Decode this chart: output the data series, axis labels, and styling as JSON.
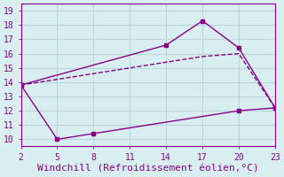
{
  "line1_x": [
    2,
    14,
    17,
    20,
    23
  ],
  "line1_y": [
    13.8,
    16.6,
    18.3,
    16.4,
    12.2
  ],
  "line2_x": [
    2,
    5,
    8,
    11,
    14,
    17,
    20,
    23
  ],
  "line2_y": [
    13.8,
    14.2,
    14.6,
    15.0,
    15.4,
    15.8,
    16.0,
    12.2
  ],
  "line3_x": [
    2,
    5,
    8,
    20,
    23
  ],
  "line3_y": [
    13.8,
    10.0,
    10.4,
    12.0,
    12.2
  ],
  "line_color": "#8b008b",
  "bg_color": "#d8eef0",
  "grid_color": "#b8d8dc",
  "xlabel": "Windchill (Refroidissement éolien,°C)",
  "xlim": [
    2,
    23
  ],
  "ylim": [
    9.5,
    19.5
  ],
  "xticks": [
    2,
    5,
    8,
    11,
    14,
    17,
    20,
    23
  ],
  "yticks": [
    10,
    11,
    12,
    13,
    14,
    15,
    16,
    17,
    18,
    19
  ],
  "xlabel_color": "#8b008b",
  "xlabel_fontsize": 8,
  "tick_fontsize": 7,
  "marker_size": 3,
  "linewidth": 1.0
}
